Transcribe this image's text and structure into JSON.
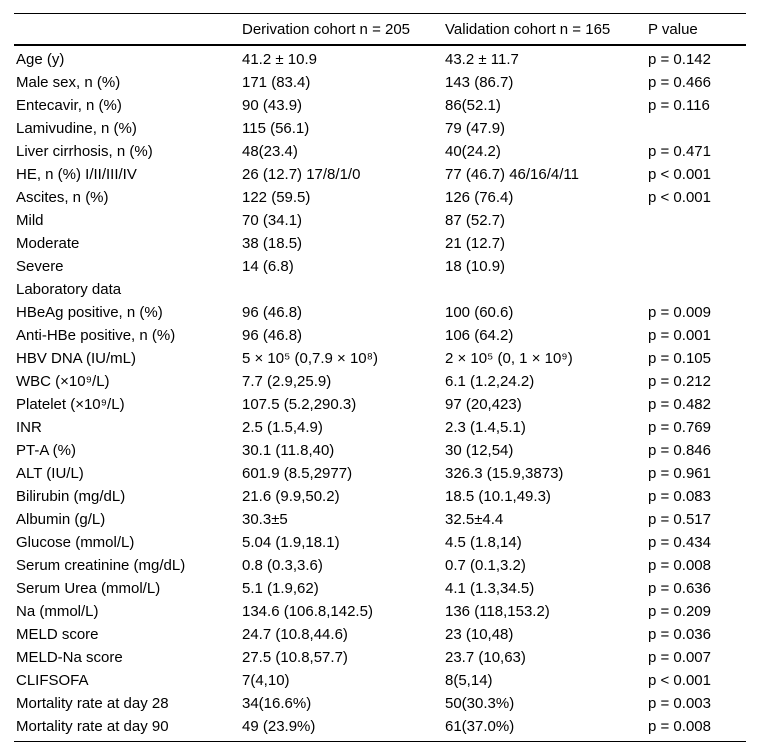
{
  "table": {
    "columns": [
      "",
      "Derivation cohort n = 205",
      "Validation cohort n = 165",
      "P value"
    ],
    "rows": [
      {
        "label": "Age (y)",
        "derivation": "41.2 ± 10.9",
        "validation": "43.2 ± 11.7",
        "p": "p = 0.142"
      },
      {
        "label": "Male sex, n (%)",
        "derivation": "171 (83.4)",
        "validation": "143 (86.7)",
        "p": "p = 0.466"
      },
      {
        "label": "Entecavir, n (%)",
        "derivation": "90 (43.9)",
        "validation": "86(52.1)",
        "p": "p = 0.116"
      },
      {
        "label": "Lamivudine, n (%)",
        "derivation": "115 (56.1)",
        "validation": "79 (47.9)",
        "p": ""
      },
      {
        "label": "Liver cirrhosis, n (%)",
        "derivation": "48(23.4)",
        "validation": "40(24.2)",
        "p": "p = 0.471"
      },
      {
        "label": "HE, n (%) I/II/III/IV",
        "derivation": "26 (12.7) 17/8/1/0",
        "validation": "77 (46.7) 46/16/4/11",
        "p": "p < 0.001"
      },
      {
        "label": "Ascites, n (%)",
        "derivation": "122 (59.5)",
        "validation": "126 (76.4)",
        "p": "p < 0.001"
      },
      {
        "label": "Mild",
        "derivation": "70 (34.1)",
        "validation": "87 (52.7)",
        "p": ""
      },
      {
        "label": "Moderate",
        "derivation": "38 (18.5)",
        "validation": "21 (12.7)",
        "p": ""
      },
      {
        "label": "Severe",
        "derivation": "14 (6.8)",
        "validation": "18 (10.9)",
        "p": ""
      },
      {
        "label": "Laboratory data",
        "derivation": "",
        "validation": "",
        "p": ""
      },
      {
        "label": "HBeAg positive, n (%)",
        "derivation": "96 (46.8)",
        "validation": "100 (60.6)",
        "p": "p = 0.009"
      },
      {
        "label": "Anti-HBe positive, n (%)",
        "derivation": "96 (46.8)",
        "validation": "106 (64.2)",
        "p": "p = 0.001"
      },
      {
        "label": "HBV DNA (IU/mL)",
        "derivation": "5 × 10⁵ (0,7.9 × 10⁸)",
        "validation": "2 × 10⁵ (0, 1 × 10⁹)",
        "p": "p = 0.105"
      },
      {
        "label": "WBC (×10⁹/L)",
        "derivation": "7.7 (2.9,25.9)",
        "validation": "6.1 (1.2,24.2)",
        "p": "p = 0.212"
      },
      {
        "label": "Platelet (×10⁹/L)",
        "derivation": "107.5 (5.2,290.3)",
        "validation": "97 (20,423)",
        "p": "p = 0.482"
      },
      {
        "label": "INR",
        "derivation": "2.5 (1.5,4.9)",
        "validation": "2.3 (1.4,5.1)",
        "p": "p = 0.769"
      },
      {
        "label": "PT-A (%)",
        "derivation": "30.1 (11.8,40)",
        "validation": "30 (12,54)",
        "p": "p = 0.846"
      },
      {
        "label": "ALT (IU/L)",
        "derivation": "601.9 (8.5,2977)",
        "validation": "326.3 (15.9,3873)",
        "p": "p = 0.961"
      },
      {
        "label": "Bilirubin (mg/dL)",
        "derivation": "21.6 (9.9,50.2)",
        "validation": "18.5 (10.1,49.3)",
        "p": "p = 0.083"
      },
      {
        "label": "Albumin (g/L)",
        "derivation": "30.3±5",
        "validation": "32.5±4.4",
        "p": "p = 0.517"
      },
      {
        "label": "Glucose (mmol/L)",
        "derivation": "5.04 (1.9,18.1)",
        "validation": "4.5 (1.8,14)",
        "p": "p = 0.434"
      },
      {
        "label": "Serum creatinine (mg/dL)",
        "derivation": "0.8 (0.3,3.6)",
        "validation": "0.7 (0.1,3.2)",
        "p": "p = 0.008"
      },
      {
        "label": "Serum Urea (mmol/L)",
        "derivation": "5.1 (1.9,62)",
        "validation": "4.1 (1.3,34.5)",
        "p": "p = 0.636"
      },
      {
        "label": "Na (mmol/L)",
        "derivation": "134.6 (106.8,142.5)",
        "validation": "136 (118,153.2)",
        "p": "p = 0.209"
      },
      {
        "label": "MELD score",
        "derivation": "24.7 (10.8,44.6)",
        "validation": "23 (10,48)",
        "p": "p = 0.036"
      },
      {
        "label": "MELD-Na score",
        "derivation": "27.5 (10.8,57.7)",
        "validation": "23.7 (10,63)",
        "p": "p = 0.007"
      },
      {
        "label": "CLIFSOFA",
        "derivation": "7(4,10)",
        "validation": "8(5,14)",
        "p": "p < 0.001"
      },
      {
        "label": "Mortality rate at day 28",
        "derivation": "34(16.6%)",
        "validation": "50(30.3%)",
        "p": "p = 0.003"
      },
      {
        "label": "Mortality rate at day 90",
        "derivation": "49 (23.9%)",
        "validation": "61(37.0%)",
        "p": "p = 0.008"
      }
    ]
  }
}
